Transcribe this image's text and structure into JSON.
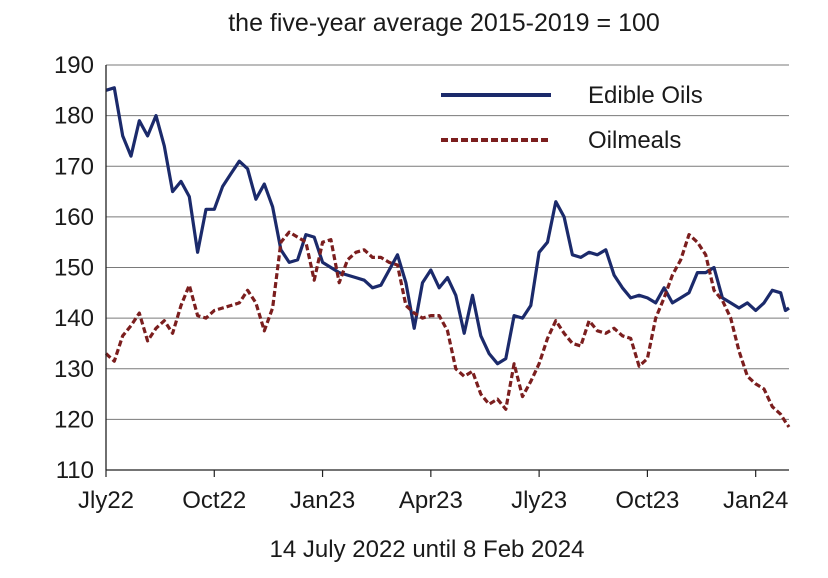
{
  "chart_data": {
    "type": "line",
    "title": "",
    "subtitle": "the five-year average 2015-2019 = 100",
    "xlabel": "14 July 2022 until 8 Feb 2024",
    "ylabel": "",
    "ylim": [
      110,
      190
    ],
    "yticks": [
      "110",
      "120",
      "130",
      "140",
      "150",
      "160",
      "170",
      "180",
      "190"
    ],
    "xlim": [
      "2022-07-14",
      "2024-02-08"
    ],
    "xticks": [
      {
        "label": "Jly22",
        "date": "2022-07-14"
      },
      {
        "label": "Oct22",
        "date": "2022-10-13"
      },
      {
        "label": "Jan23",
        "date": "2023-01-12"
      },
      {
        "label": "Apr23",
        "date": "2023-04-13"
      },
      {
        "label": "Jly23",
        "date": "2023-07-13"
      },
      {
        "label": "Oct23",
        "date": "2023-10-12"
      },
      {
        "label": "Jan24",
        "date": "2024-01-11"
      }
    ],
    "grid": "horizontal",
    "legend_position": "top-right",
    "series": [
      {
        "name": "Edible Oils",
        "color": "#1b2a6b",
        "style": "solid",
        "points": [
          [
            "2022-07-14",
            185
          ],
          [
            "2022-07-21",
            185.5
          ],
          [
            "2022-07-28",
            176
          ],
          [
            "2022-08-04",
            172
          ],
          [
            "2022-08-11",
            179
          ],
          [
            "2022-08-18",
            176
          ],
          [
            "2022-08-25",
            180
          ],
          [
            "2022-09-01",
            174
          ],
          [
            "2022-09-08",
            165
          ],
          [
            "2022-09-15",
            167
          ],
          [
            "2022-09-22",
            164
          ],
          [
            "2022-09-29",
            153
          ],
          [
            "2022-10-06",
            161.5
          ],
          [
            "2022-10-13",
            161.5
          ],
          [
            "2022-10-20",
            166
          ],
          [
            "2022-10-27",
            168.5
          ],
          [
            "2022-11-03",
            171
          ],
          [
            "2022-11-10",
            169.5
          ],
          [
            "2022-11-17",
            163.5
          ],
          [
            "2022-11-24",
            166.5
          ],
          [
            "2022-12-01",
            162
          ],
          [
            "2022-12-08",
            153.5
          ],
          [
            "2022-12-15",
            151
          ],
          [
            "2022-12-22",
            151.5
          ],
          [
            "2022-12-29",
            156.5
          ],
          [
            "2023-01-05",
            156
          ],
          [
            "2023-01-12",
            151
          ],
          [
            "2023-01-19",
            150
          ],
          [
            "2023-01-26",
            149
          ],
          [
            "2023-02-02",
            148.5
          ],
          [
            "2023-02-09",
            148
          ],
          [
            "2023-02-16",
            147.5
          ],
          [
            "2023-02-23",
            146
          ],
          [
            "2023-03-02",
            146.5
          ],
          [
            "2023-03-09",
            149.5
          ],
          [
            "2023-03-16",
            152.5
          ],
          [
            "2023-03-23",
            147
          ],
          [
            "2023-03-30",
            138
          ],
          [
            "2023-04-06",
            147
          ],
          [
            "2023-04-13",
            149.5
          ],
          [
            "2023-04-20",
            146
          ],
          [
            "2023-04-27",
            148
          ],
          [
            "2023-05-04",
            144.5
          ],
          [
            "2023-05-11",
            137
          ],
          [
            "2023-05-18",
            144.5
          ],
          [
            "2023-05-25",
            136.5
          ],
          [
            "2023-06-01",
            133
          ],
          [
            "2023-06-08",
            131
          ],
          [
            "2023-06-15",
            132
          ],
          [
            "2023-06-22",
            140.5
          ],
          [
            "2023-06-29",
            140
          ],
          [
            "2023-07-06",
            142.5
          ],
          [
            "2023-07-13",
            153
          ],
          [
            "2023-07-20",
            155
          ],
          [
            "2023-07-27",
            163
          ],
          [
            "2023-08-03",
            160
          ],
          [
            "2023-08-10",
            152.5
          ],
          [
            "2023-08-17",
            152
          ],
          [
            "2023-08-24",
            153
          ],
          [
            "2023-08-31",
            152.5
          ],
          [
            "2023-09-07",
            153.5
          ],
          [
            "2023-09-14",
            148.5
          ],
          [
            "2023-09-21",
            146
          ],
          [
            "2023-09-28",
            144
          ],
          [
            "2023-10-05",
            144.5
          ],
          [
            "2023-10-12",
            144
          ],
          [
            "2023-10-19",
            143
          ],
          [
            "2023-10-26",
            146
          ],
          [
            "2023-11-02",
            143
          ],
          [
            "2023-11-09",
            144
          ],
          [
            "2023-11-16",
            145
          ],
          [
            "2023-11-23",
            149
          ],
          [
            "2023-11-30",
            149
          ],
          [
            "2023-12-07",
            150
          ],
          [
            "2023-12-14",
            144
          ],
          [
            "2023-12-21",
            143
          ],
          [
            "2023-12-28",
            142
          ],
          [
            "2024-01-04",
            143
          ],
          [
            "2024-01-11",
            141.5
          ],
          [
            "2024-01-18",
            143
          ],
          [
            "2024-01-25",
            145.5
          ],
          [
            "2024-02-01",
            145
          ],
          [
            "2024-02-05",
            141.5
          ],
          [
            "2024-02-08",
            142
          ]
        ]
      },
      {
        "name": "Oilmeals",
        "color": "#7b1e1e",
        "style": "dashed",
        "points": [
          [
            "2022-07-14",
            133
          ],
          [
            "2022-07-21",
            131.5
          ],
          [
            "2022-07-28",
            136.5
          ],
          [
            "2022-08-04",
            138.5
          ],
          [
            "2022-08-11",
            141
          ],
          [
            "2022-08-18",
            135.5
          ],
          [
            "2022-08-25",
            138
          ],
          [
            "2022-09-01",
            139.5
          ],
          [
            "2022-09-08",
            137
          ],
          [
            "2022-09-15",
            142.5
          ],
          [
            "2022-09-22",
            146.5
          ],
          [
            "2022-09-29",
            140.5
          ],
          [
            "2022-10-06",
            140
          ],
          [
            "2022-10-13",
            141.5
          ],
          [
            "2022-10-20",
            142
          ],
          [
            "2022-10-27",
            142.5
          ],
          [
            "2022-11-03",
            143
          ],
          [
            "2022-11-10",
            145.5
          ],
          [
            "2022-11-17",
            143
          ],
          [
            "2022-11-24",
            137.5
          ],
          [
            "2022-12-01",
            142
          ],
          [
            "2022-12-08",
            155
          ],
          [
            "2022-12-15",
            157
          ],
          [
            "2022-12-22",
            156
          ],
          [
            "2022-12-29",
            155
          ],
          [
            "2023-01-05",
            147.5
          ],
          [
            "2023-01-12",
            155
          ],
          [
            "2023-01-19",
            155.5
          ],
          [
            "2023-01-26",
            147
          ],
          [
            "2023-02-02",
            151.5
          ],
          [
            "2023-02-09",
            153
          ],
          [
            "2023-02-16",
            153.5
          ],
          [
            "2023-02-23",
            152
          ],
          [
            "2023-03-02",
            152
          ],
          [
            "2023-03-09",
            151
          ],
          [
            "2023-03-16",
            150.5
          ],
          [
            "2023-03-23",
            142.5
          ],
          [
            "2023-03-30",
            141
          ],
          [
            "2023-04-06",
            140
          ],
          [
            "2023-04-13",
            140.5
          ],
          [
            "2023-04-20",
            140.5
          ],
          [
            "2023-04-27",
            137.5
          ],
          [
            "2023-05-04",
            130
          ],
          [
            "2023-05-11",
            128.5
          ],
          [
            "2023-05-18",
            129.5
          ],
          [
            "2023-05-25",
            125
          ],
          [
            "2023-06-01",
            123
          ],
          [
            "2023-06-08",
            124
          ],
          [
            "2023-06-15",
            122
          ],
          [
            "2023-06-22",
            131
          ],
          [
            "2023-06-29",
            124.5
          ],
          [
            "2023-07-06",
            127.5
          ],
          [
            "2023-07-13",
            131
          ],
          [
            "2023-07-20",
            136
          ],
          [
            "2023-07-27",
            139.5
          ],
          [
            "2023-08-03",
            137
          ],
          [
            "2023-08-10",
            135
          ],
          [
            "2023-08-17",
            134.5
          ],
          [
            "2023-08-24",
            139.5
          ],
          [
            "2023-08-31",
            137.5
          ],
          [
            "2023-09-07",
            137
          ],
          [
            "2023-09-14",
            138
          ],
          [
            "2023-09-21",
            136.5
          ],
          [
            "2023-09-28",
            136
          ],
          [
            "2023-10-05",
            130.5
          ],
          [
            "2023-10-12",
            132
          ],
          [
            "2023-10-19",
            140
          ],
          [
            "2023-10-26",
            144
          ],
          [
            "2023-11-02",
            148.5
          ],
          [
            "2023-11-09",
            151.5
          ],
          [
            "2023-11-16",
            156.5
          ],
          [
            "2023-11-23",
            155
          ],
          [
            "2023-11-30",
            152.5
          ],
          [
            "2023-12-07",
            145.5
          ],
          [
            "2023-12-14",
            143.5
          ],
          [
            "2023-12-21",
            140
          ],
          [
            "2023-12-28",
            133.5
          ],
          [
            "2024-01-04",
            128.5
          ],
          [
            "2024-01-11",
            127
          ],
          [
            "2024-01-18",
            126
          ],
          [
            "2024-01-25",
            122.5
          ],
          [
            "2024-02-01",
            121
          ],
          [
            "2024-02-05",
            119.5
          ],
          [
            "2024-02-08",
            118.5
          ]
        ]
      }
    ]
  }
}
